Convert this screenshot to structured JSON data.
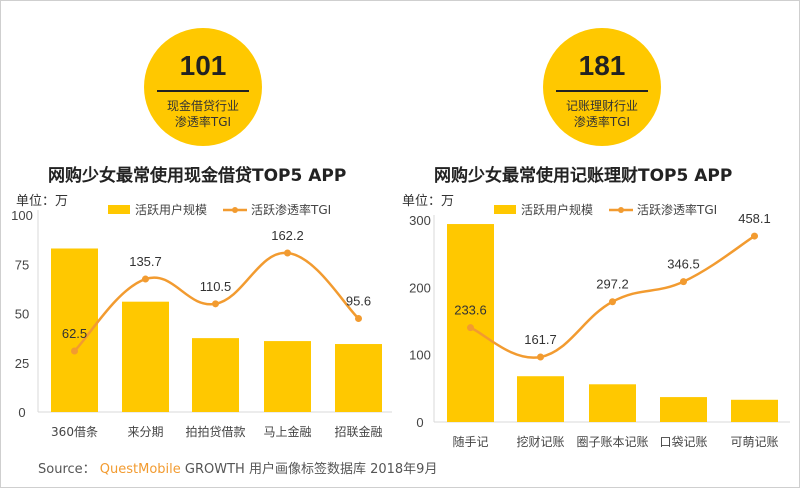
{
  "left_badge": {
    "value": "101",
    "caption_line1": "现金借贷行业",
    "caption_line2": "渗透率TGI"
  },
  "right_badge": {
    "value": "181",
    "caption_line1": "记账理财行业",
    "caption_line2": "渗透率TGI"
  },
  "source": {
    "prefix": "Source：",
    "brand": "QuestMobile",
    "text": "GROWTH 用户画像标签数据库 2018年9月"
  },
  "colors": {
    "bar": "#ffc800",
    "line": "#f29b30",
    "axis": "#d9d9d9"
  },
  "chart_data": [
    {
      "type": "bar",
      "title": "网购少女最常使用现金借贷TOP5 APP",
      "unit_label": "单位：万",
      "categories": [
        "360借条",
        "来分期",
        "拍拍贷借款",
        "马上金融",
        "招联金融"
      ],
      "series": [
        {
          "name": "活跃用户规模",
          "kind": "bar",
          "values": [
            83,
            56,
            37.5,
            36,
            34.5
          ]
        },
        {
          "name": "活跃渗透率TGI",
          "kind": "line",
          "values": [
            62.5,
            135.7,
            110.5,
            162.2,
            95.6
          ],
          "labels": [
            "62.5",
            "135.7",
            "110.5",
            "162.2",
            "95.6"
          ]
        }
      ],
      "yticks": [
        "0",
        "25",
        "50",
        "75",
        "100"
      ],
      "ylim": [
        0,
        100
      ],
      "legend": "top"
    },
    {
      "type": "bar",
      "title": "网购少女最常使用记账理财TOP5 APP",
      "unit_label": "单位：万",
      "categories": [
        "随手记",
        "挖财记账",
        "圈子账本记账",
        "口袋记账",
        "可萌记账"
      ],
      "series": [
        {
          "name": "活跃用户规模",
          "kind": "bar",
          "values": [
            294,
            68,
            56,
            37,
            33
          ]
        },
        {
          "name": "活跃渗透率TGI",
          "kind": "line",
          "values": [
            233.6,
            161.7,
            297.2,
            346.5,
            458.1
          ],
          "labels": [
            "233.6",
            "161.7",
            "297.2",
            "346.5",
            "458.1"
          ]
        }
      ],
      "yticks": [
        "0",
        "100",
        "200",
        "300"
      ],
      "ylim": [
        0,
        300
      ],
      "legend": "top"
    }
  ]
}
